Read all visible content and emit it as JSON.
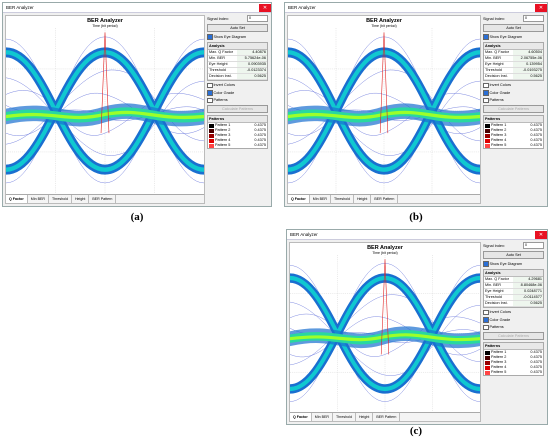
{
  "panels": [
    {
      "label": "(a)",
      "window_title": "BER Analyzer",
      "plot_title": "BER Analyzer",
      "x_axis_title": "Time (bit period)",
      "signal_index_label": "Signal Index:",
      "signal_index": "0",
      "auto_set": "Auto Set",
      "show_eye": "Show Eye Diagram",
      "analysis_title": "Analysis",
      "analysis": [
        [
          "Max. Q Factor",
          "4.40876"
        ],
        [
          "Min. BER",
          "5.75624e-06"
        ],
        [
          "Eye Height",
          "0.0903935"
        ],
        [
          "Threshold",
          "-0.0123374"
        ],
        [
          "Decision Inst.",
          "0.5625"
        ]
      ],
      "invert_colors": "Invert Colors",
      "color_grade": "Color Grade",
      "patterns_check": "Patterns",
      "calculate": "Calculate Patterns",
      "patterns_title": "Patterns",
      "patterns": [
        [
          "Pattern 1",
          "0.4375"
        ],
        [
          "Pattern 2",
          "0.4375"
        ],
        [
          "Pattern 3",
          "0.4375"
        ],
        [
          "Pattern 4",
          "0.4375"
        ],
        [
          "Pattern 5",
          "0.4375"
        ]
      ],
      "tabs": [
        "Q Factor",
        "Min BER",
        "Threshold",
        "Height",
        "BER Pattern"
      ]
    },
    {
      "label": "(b)",
      "window_title": "BER Analyzer",
      "plot_title": "BER Analyzer",
      "x_axis_title": "Time (bit period)",
      "signal_index_label": "Signal Index:",
      "signal_index": "0",
      "auto_set": "Auto Set",
      "show_eye": "Show Eye Diagram",
      "analysis_title": "Analysis",
      "analysis": [
        [
          "Max. Q Factor",
          "4.60504"
        ],
        [
          "Min. BER",
          "2.06755e-06"
        ],
        [
          "Eye Height",
          "0.139954"
        ],
        [
          "Threshold",
          "-0.0193275"
        ],
        [
          "Decision Inst.",
          "0.5625"
        ]
      ],
      "invert_colors": "Invert Colors",
      "color_grade": "Color Grade",
      "patterns_check": "Patterns",
      "calculate": "Calculate Patterns",
      "patterns_title": "Patterns",
      "patterns": [
        [
          "Pattern 1",
          "0.4375"
        ],
        [
          "Pattern 2",
          "0.4375"
        ],
        [
          "Pattern 3",
          "0.4375"
        ],
        [
          "Pattern 4",
          "0.4375"
        ],
        [
          "Pattern 5",
          "0.4375"
        ]
      ],
      "tabs": [
        "Q Factor",
        "Min BER",
        "Threshold",
        "Height",
        "BER Pattern"
      ]
    },
    {
      "label": "(c)",
      "window_title": "BER Analyzer",
      "plot_title": "BER Analyzer",
      "x_axis_title": "Time (bit period)",
      "signal_index_label": "Signal Index:",
      "signal_index": "0",
      "auto_set": "Auto Set",
      "show_eye": "Show Eye Diagram",
      "analysis_title": "Analysis",
      "analysis": [
        [
          "Max. Q Factor",
          "4.29681"
        ],
        [
          "Min. BER",
          "8.80468e-06"
        ],
        [
          "Eye Height",
          "0.0248771"
        ],
        [
          "Threshold",
          "-0.0114577"
        ],
        [
          "Decision Inst.",
          "0.5625"
        ]
      ],
      "invert_colors": "Invert Colors",
      "color_grade": "Color Grade",
      "patterns_check": "Patterns",
      "calculate": "Calculate Patterns",
      "patterns_title": "Patterns",
      "patterns": [
        [
          "Pattern 1",
          "0.4375"
        ],
        [
          "Pattern 2",
          "0.4375"
        ],
        [
          "Pattern 3",
          "0.4375"
        ],
        [
          "Pattern 4",
          "0.4375"
        ],
        [
          "Pattern 5",
          "0.4375"
        ]
      ],
      "tabs": [
        "Q Factor",
        "Min BER",
        "Threshold",
        "Height",
        "BER Pattern"
      ]
    }
  ]
}
